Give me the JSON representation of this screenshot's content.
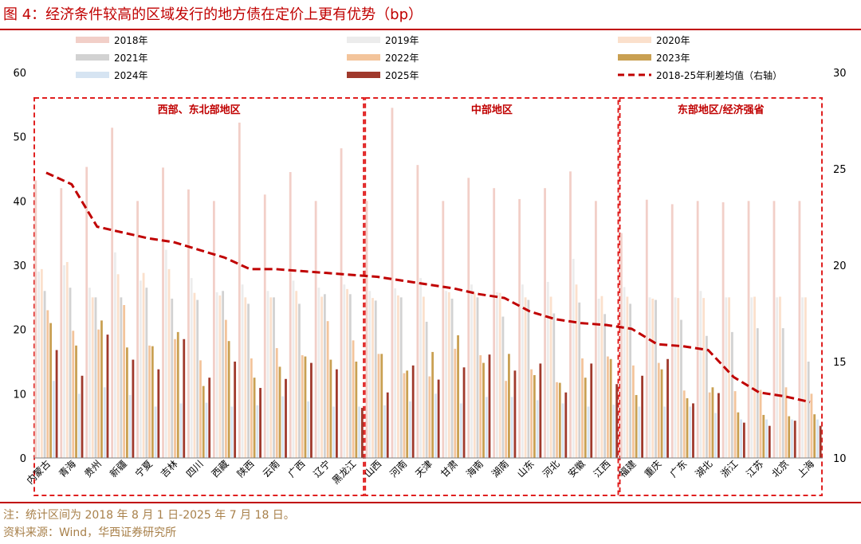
{
  "page": {
    "title": "图 4：经济条件较高的区域发行的地方债在定价上更有优势（bp）",
    "note": "注：统计区间为 2018 年 8 月 1 日-2025 年 7 月 18 日。",
    "source": "资料来源：Wind，华西证券研究所"
  },
  "colors": {
    "title_red": "#c00000",
    "note_gold": "#a8804a",
    "y2018": "#f2cfc8",
    "y2019": "#ececec",
    "y2020": "#fbe0cc",
    "y2021": "#d2d2d2",
    "y2022": "#f3c49b",
    "y2023": "#c9a052",
    "y2024": "#d6e4f2",
    "y2025": "#a0392c",
    "avg_line": "#c00000"
  },
  "chart_data": {
    "type": "bar",
    "ylim": [
      0,
      60
    ],
    "y_ticks": [
      "0",
      "10",
      "20",
      "30",
      "40",
      "50",
      "60"
    ],
    "y2lim": [
      10,
      30
    ],
    "y2_ticks": [
      "10",
      "15",
      "20",
      "25",
      "30"
    ],
    "categories": [
      "内蒙古",
      "青海",
      "贵州",
      "新疆",
      "宁夏",
      "吉林",
      "四川",
      "西藏",
      "陕西",
      "云南",
      "广西",
      "辽宁",
      "黑龙江",
      "山西",
      "河南",
      "天津",
      "甘肃",
      "海南",
      "湖南",
      "山东",
      "河北",
      "安徽",
      "江西",
      "福建",
      "重庆",
      "广东",
      "湖北",
      "浙江",
      "江苏",
      "北京",
      "上海"
    ],
    "series": [
      {
        "name": "2018年",
        "color": "#f2cfc8",
        "values": [
          43.2,
          42.0,
          45.3,
          51.4,
          40.0,
          45.2,
          41.8,
          40.0,
          52.2,
          41.0,
          44.5,
          40.0,
          48.2,
          40.0,
          54.5,
          45.6,
          40.0,
          43.6,
          42.0,
          40.3,
          42.0,
          44.6,
          40.0,
          35.0,
          40.2,
          39.5,
          40.0,
          39.8,
          40.0,
          40.0,
          40.0
        ]
      },
      {
        "name": "2019年",
        "color": "#ececec",
        "values": [
          29.0,
          30.0,
          26.5,
          32.0,
          27.6,
          32.4,
          28.0,
          25.8,
          27.0,
          26.0,
          27.6,
          26.5,
          27.0,
          26.0,
          26.4,
          28.0,
          26.0,
          27.0,
          25.8,
          27.0,
          27.4,
          31.0,
          24.8,
          26.6,
          25.0,
          25.0,
          26.0,
          25.0,
          25.0,
          25.0,
          25.0
        ]
      },
      {
        "name": "2020年",
        "color": "#fbe0cc",
        "values": [
          29.4,
          30.5,
          25.0,
          28.6,
          28.8,
          29.4,
          25.7,
          25.3,
          25.0,
          25.0,
          26.0,
          25.1,
          26.3,
          24.9,
          25.3,
          25.1,
          25.8,
          25.7,
          25.7,
          25.0,
          25.1,
          27.0,
          25.2,
          25.1,
          24.8,
          24.9,
          24.9,
          25.0,
          25.1,
          25.1,
          25.0
        ]
      },
      {
        "name": "2021年",
        "color": "#d2d2d2",
        "values": [
          26.0,
          26.5,
          25.0,
          25.0,
          26.5,
          24.8,
          24.6,
          26.0,
          24.0,
          25.0,
          24.0,
          25.5,
          25.5,
          24.5,
          25.0,
          21.2,
          24.8,
          25.0,
          22.0,
          24.6,
          22.5,
          24.2,
          22.4,
          24.0,
          24.6,
          21.5,
          19.0,
          19.6,
          20.2,
          20.2,
          15.0
        ]
      },
      {
        "name": "2022年",
        "color": "#f3c49b",
        "values": [
          23.0,
          19.8,
          20.0,
          23.8,
          17.5,
          18.5,
          15.2,
          21.5,
          15.5,
          17.1,
          16.0,
          21.3,
          18.3,
          16.2,
          13.2,
          12.7,
          17.0,
          16.0,
          12.0,
          13.8,
          11.8,
          15.5,
          15.8,
          14.4,
          14.8,
          10.5,
          10.2,
          10.4,
          10.6,
          11.0,
          10.0
        ]
      },
      {
        "name": "2023年",
        "color": "#c9a052",
        "values": [
          21.0,
          17.5,
          21.4,
          17.2,
          17.4,
          19.6,
          11.2,
          18.2,
          12.5,
          14.2,
          15.8,
          15.3,
          15.0,
          16.2,
          13.6,
          16.5,
          19.1,
          14.8,
          16.2,
          12.9,
          11.7,
          12.5,
          15.4,
          9.8,
          13.8,
          9.3,
          11.0,
          7.1,
          6.7,
          6.5,
          6.8
        ]
      },
      {
        "name": "2024年",
        "color": "#d6e4f2",
        "values": [
          12.0,
          10.0,
          11.0,
          9.8,
          8.0,
          8.5,
          8.6,
          8.0,
          8.2,
          9.6,
          8.8,
          8.0,
          8.0,
          8.2,
          8.8,
          10.0,
          8.5,
          9.5,
          9.5,
          9.0,
          8.5,
          8.0,
          8.3,
          8.0,
          8.0,
          8.0,
          7.0,
          6.0,
          6.0,
          6.0,
          6.0
        ]
      },
      {
        "name": "2025年",
        "color": "#a0392c",
        "values": [
          16.8,
          12.8,
          19.2,
          15.3,
          13.8,
          18.5,
          12.5,
          15.0,
          10.9,
          12.3,
          14.8,
          13.8,
          7.8,
          10.2,
          14.4,
          12.2,
          14.1,
          16.1,
          13.6,
          14.7,
          10.2,
          14.7,
          11.5,
          12.8,
          15.4,
          8.5,
          10.1,
          5.5,
          5.0,
          5.8,
          5.0
        ]
      }
    ],
    "line_series": {
      "name": "2018-25年利差均值（右轴）",
      "axis": "right",
      "color": "#c00000",
      "values": [
        24.8,
        24.2,
        22.0,
        21.7,
        21.4,
        21.2,
        20.8,
        20.4,
        19.8,
        19.8,
        19.7,
        19.6,
        19.5,
        19.4,
        19.2,
        19.0,
        18.8,
        18.5,
        18.3,
        17.6,
        17.2,
        17.0,
        16.9,
        16.7,
        15.9,
        15.8,
        15.6,
        14.2,
        13.4,
        13.2,
        12.9
      ]
    },
    "regions": [
      {
        "label": "西部、东北部地区",
        "from": 0,
        "to": 12
      },
      {
        "label": "中部地区",
        "from": 13,
        "to": 22
      },
      {
        "label": "东部地区/经济强省",
        "from": 23,
        "to": 30
      }
    ],
    "grid": false,
    "legend_placement": "top"
  }
}
